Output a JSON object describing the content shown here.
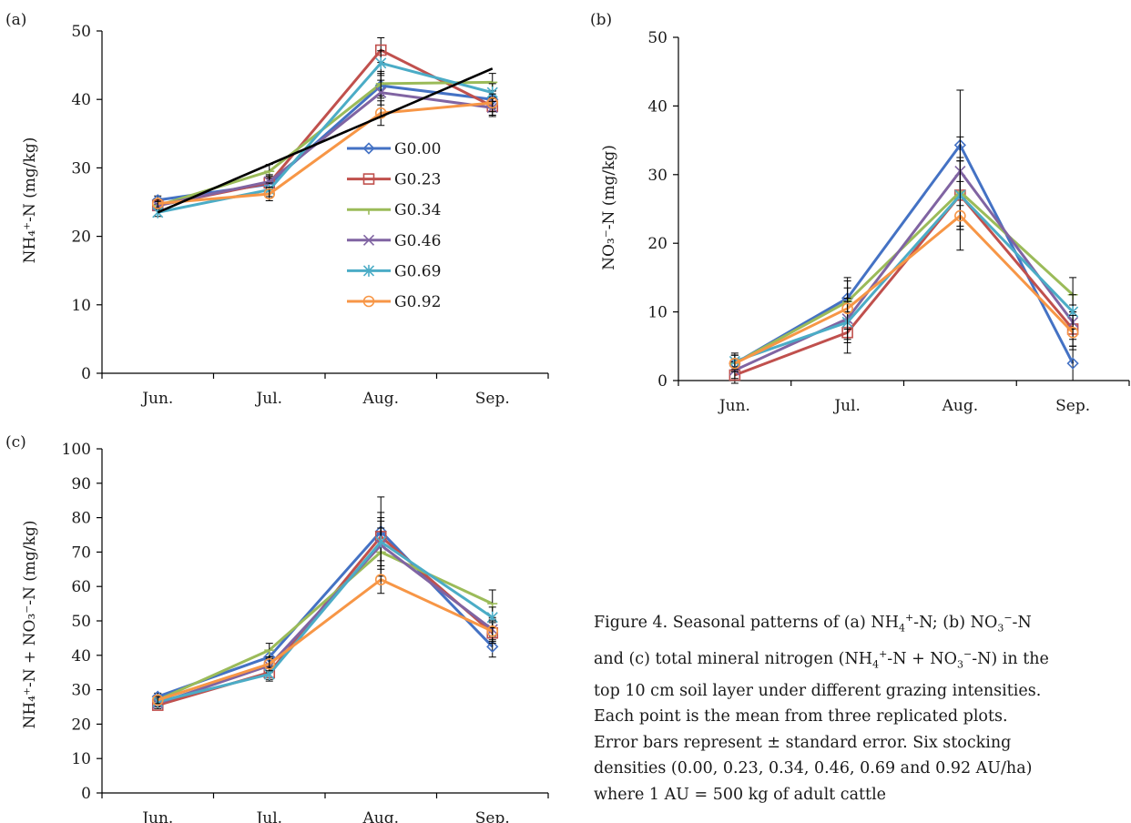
{
  "chart_data": [
    {
      "panel": "(a)",
      "type": "line",
      "ylabel": "NH₄⁺-N (mg/kg)",
      "ylim": [
        0,
        50
      ],
      "yticks": [
        0,
        10,
        20,
        30,
        40,
        50
      ],
      "categories": [
        "Jun.",
        "Jul.",
        "Aug.",
        "Sep."
      ],
      "series": [
        {
          "name": "G0.00",
          "values": [
            25.3,
            27.6,
            42.0,
            40.0
          ],
          "err": [
            0.6,
            1.0,
            1.8,
            1.3
          ]
        },
        {
          "name": "G0.23",
          "values": [
            24.5,
            27.8,
            47.2,
            39.0
          ],
          "err": [
            0.6,
            1.0,
            1.8,
            1.3
          ]
        },
        {
          "name": "G0.34",
          "values": [
            24.5,
            29.5,
            42.3,
            42.5
          ],
          "err": [
            0.6,
            1.0,
            1.8,
            1.3
          ]
        },
        {
          "name": "G0.46",
          "values": [
            24.5,
            28.0,
            41.0,
            38.8
          ],
          "err": [
            0.6,
            1.0,
            1.8,
            1.3
          ]
        },
        {
          "name": "G0.69",
          "values": [
            23.5,
            26.8,
            45.3,
            41.0
          ],
          "err": [
            0.6,
            1.0,
            1.8,
            1.3
          ]
        },
        {
          "name": "G0.92",
          "values": [
            24.8,
            26.2,
            38.0,
            39.5
          ],
          "err": [
            0.6,
            1.0,
            1.8,
            1.3
          ]
        }
      ],
      "trend_line": {
        "from": [
          1,
          23.5
        ],
        "to": [
          4,
          44.5
        ]
      },
      "legend_position": "center-right"
    },
    {
      "panel": "(b)",
      "type": "line",
      "ylabel": "NO₃⁻-N (mg/kg)",
      "ylim": [
        0,
        50
      ],
      "yticks": [
        0,
        10,
        20,
        30,
        40,
        50
      ],
      "categories": [
        "Jun.",
        "Jul.",
        "Aug.",
        "Sep."
      ],
      "series": [
        {
          "name": "G0.00",
          "values": [
            2.5,
            12.0,
            34.3,
            2.5
          ],
          "err": [
            1.2,
            3.0,
            8.0,
            2.5
          ]
        },
        {
          "name": "G0.23",
          "values": [
            0.8,
            7.0,
            27.0,
            7.5
          ],
          "err": [
            1.2,
            3.0,
            5.0,
            2.5
          ]
        },
        {
          "name": "G0.34",
          "values": [
            2.5,
            11.5,
            27.5,
            12.5
          ],
          "err": [
            1.2,
            3.0,
            5.0,
            2.5
          ]
        },
        {
          "name": "G0.46",
          "values": [
            1.5,
            9.0,
            30.5,
            8.5
          ],
          "err": [
            1.2,
            3.0,
            5.0,
            2.5
          ]
        },
        {
          "name": "G0.69",
          "values": [
            2.8,
            8.5,
            27.0,
            10.0
          ],
          "err": [
            1.2,
            3.0,
            5.0,
            2.5
          ]
        },
        {
          "name": "G0.92",
          "values": [
            2.5,
            10.5,
            24.0,
            7.0
          ],
          "err": [
            1.2,
            3.0,
            5.0,
            2.5
          ]
        }
      ]
    },
    {
      "panel": "(c)",
      "type": "line",
      "ylabel": "NH₄⁺-N + NO₃⁻-N (mg/kg)",
      "ylim": [
        0,
        100
      ],
      "yticks": [
        0,
        10,
        20,
        30,
        40,
        50,
        60,
        70,
        80,
        90,
        100
      ],
      "categories": [
        "Jun.",
        "Jul.",
        "Aug.",
        "Sep."
      ],
      "series": [
        {
          "name": "G0.00",
          "values": [
            28.0,
            39.5,
            76.0,
            42.5
          ],
          "err": [
            1.0,
            2.0,
            10.0,
            3.0
          ]
        },
        {
          "name": "G0.23",
          "values": [
            25.5,
            35.0,
            74.5,
            46.5
          ],
          "err": [
            1.0,
            2.0,
            7.0,
            3.0
          ]
        },
        {
          "name": "G0.34",
          "values": [
            27.0,
            41.5,
            70.0,
            55.0
          ],
          "err": [
            1.0,
            2.0,
            7.0,
            4.0
          ]
        },
        {
          "name": "G0.46",
          "values": [
            26.0,
            37.0,
            72.0,
            47.5
          ],
          "err": [
            1.0,
            2.0,
            7.0,
            3.0
          ]
        },
        {
          "name": "G0.69",
          "values": [
            26.5,
            34.5,
            73.0,
            51.0
          ],
          "err": [
            1.0,
            2.0,
            7.0,
            3.0
          ]
        },
        {
          "name": "G0.92",
          "values": [
            27.0,
            37.5,
            62.0,
            47.0
          ],
          "err": [
            1.0,
            2.0,
            4.0,
            3.0
          ]
        }
      ]
    }
  ],
  "series_colors": {
    "G0.00": "#4472C4",
    "G0.23": "#C0504D",
    "G0.34": "#9BBB59",
    "G0.46": "#8064A2",
    "G0.69": "#4BACC6",
    "G0.92": "#F79646"
  },
  "series_markers": {
    "G0.00": "diamond",
    "G0.23": "square",
    "G0.34": "dash-tick",
    "G0.46": "x",
    "G0.69": "asterisk",
    "G0.92": "circle"
  },
  "caption": {
    "l1a": "Figure 4. Seasonal patterns of (a) NH",
    "l1b": "-N; (b) NO",
    "l1c": "-N",
    "l2a": "and (c) total mineral nitrogen (NH",
    "l2b": "-N + NO",
    "l2c": "-N) in the",
    "l3": "top 10 cm soil layer under different grazing intensities.",
    "l4": "Each point is the mean from three replicated plots.",
    "l5": "Error bars represent ± standard error. Six stocking",
    "l6": "densities (0.00, 0.23, 0.34, 0.46, 0.69 and 0.92 AU/ha)",
    "l7": "where 1 AU = 500 kg of adult cattle",
    "sub4": "4",
    "sub3": "3",
    "sup_plus": "+",
    "sup_minus": "−"
  }
}
